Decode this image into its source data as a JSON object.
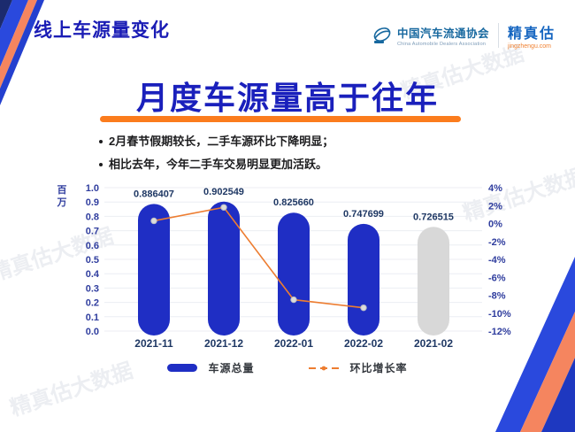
{
  "header": {
    "slide_title": "线上车源量变化",
    "cada": {
      "name": "中国汽车流通协会",
      "subtitle": "China Automobile Dealers Association"
    },
    "jzg": {
      "name": "精真估",
      "subtitle": "jingzhengu.com"
    }
  },
  "main": {
    "title": "月度车源量高于往年",
    "bullets": [
      "2月春节假期较长，二手车源环比下降明显；",
      "相比去年，今年二手车交易明显更加活跃。"
    ]
  },
  "chart_data": {
    "type": "combo",
    "categories": [
      "2021-11",
      "2021-12",
      "2022-01",
      "2022-02",
      "2021-02"
    ],
    "series": [
      {
        "name": "车源总量",
        "type": "bar",
        "values": [
          0.886407,
          0.902549,
          0.82566,
          0.747699,
          0.726515
        ],
        "labels": [
          "0.886407",
          "0.902549",
          "0.825660",
          "0.747699",
          "0.726515"
        ],
        "colors": [
          "#1F2EC4",
          "#1F2EC4",
          "#1F2EC4",
          "#1F2EC4",
          "#D8D8D8"
        ]
      },
      {
        "name": "环比增长率",
        "type": "line",
        "values_pct": [
          0.3,
          1.8,
          -8.5,
          -9.4,
          null
        ],
        "color": "#ED7D31",
        "marker_fill": "#DCDCDC",
        "marker_stroke": "#B9BDC4"
      }
    ],
    "left_axis": {
      "unit": "百万",
      "ticks": [
        "1.0",
        "0.9",
        "0.8",
        "0.7",
        "0.6",
        "0.5",
        "0.4",
        "0.3",
        "0.2",
        "0.1",
        "0.0"
      ],
      "min": 0.0,
      "max": 1.0
    },
    "right_axis": {
      "ticks": [
        "4%",
        "2%",
        "0%",
        "-2%",
        "-4%",
        "-6%",
        "-8%",
        "-10%",
        "-12%"
      ],
      "min": -12,
      "max": 4
    },
    "grid": true,
    "legend_position": "bottom",
    "legend": [
      {
        "label": "车源总量",
        "color": "#1F2EC4",
        "type": "bar"
      },
      {
        "label": "环比增长率",
        "color": "#ED7D31",
        "type": "line"
      }
    ]
  },
  "watermark": "精真估大数据",
  "colors": {
    "title_blue": "#1B1DB5",
    "underline_orange": "#FB7C1D",
    "axis_blue": "#2F3D9E",
    "label_navy": "#1F3864",
    "bar_blue": "#1F2EC4",
    "bar_gray": "#D8D8D8",
    "line_orange": "#ED7D31",
    "corner_blue": "#2A49DD",
    "corner_salmon": "#F5855F",
    "corner_navy": "#1C2B6E"
  }
}
